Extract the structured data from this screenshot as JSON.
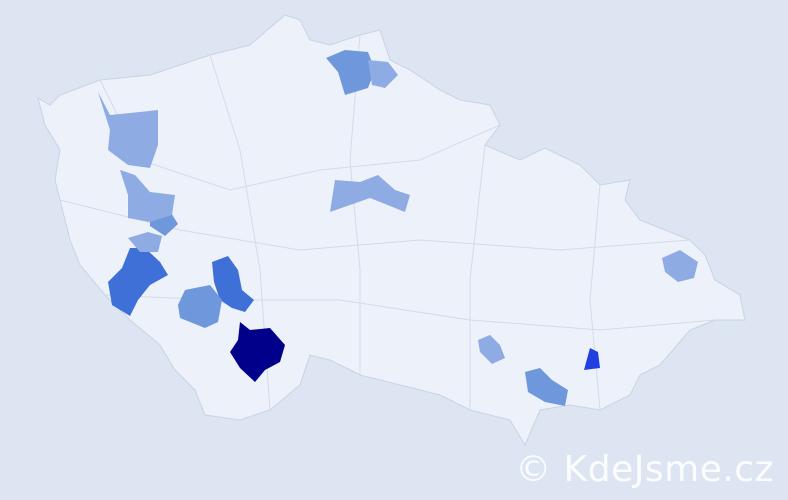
{
  "map": {
    "country_fill": "#edf1f9",
    "border_color": "#c9d3e6",
    "background": "#dce5f1",
    "highlight_levels": {
      "darkest": "#00008b",
      "strong": "#2240e0",
      "medium": "#3f70d8",
      "light": "#6f98dc",
      "lightest": "#8fabe3"
    }
  },
  "watermark": "© KdeJsme.cz"
}
